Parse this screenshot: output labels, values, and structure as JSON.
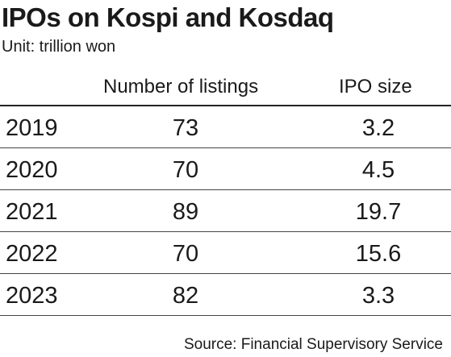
{
  "title": "IPOs on Kospi and Kosdaq",
  "unit": "Unit: trillion won",
  "source": "Source: Financial Supervisory Service",
  "chart_data": {
    "type": "table",
    "title": "IPOs on Kospi and Kosdaq",
    "columns": [
      "",
      "Number of listings",
      "IPO size"
    ],
    "rows": [
      {
        "year": "2019",
        "listings": "73",
        "size": "3.2"
      },
      {
        "year": "2020",
        "listings": "70",
        "size": "4.5"
      },
      {
        "year": "2021",
        "listings": "89",
        "size": "19.7"
      },
      {
        "year": "2022",
        "listings": "70",
        "size": "15.6"
      },
      {
        "year": "2023",
        "listings": "82",
        "size": "3.3"
      }
    ]
  }
}
